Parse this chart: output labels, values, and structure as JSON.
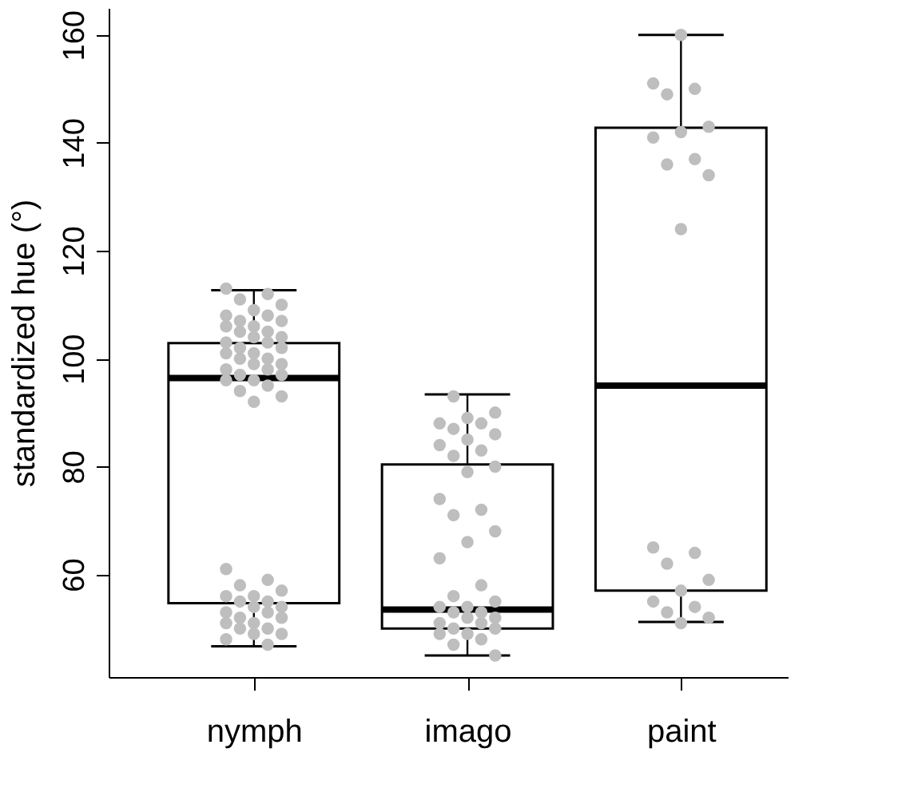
{
  "chart_data": {
    "type": "box",
    "categories": [
      "nymph",
      "imago",
      "paint"
    ],
    "boxes": [
      {
        "low": 46.7,
        "q1": 54.7,
        "median": 96.4,
        "q3": 102.9,
        "high": 112.7
      },
      {
        "low": 45,
        "q1": 50,
        "median": 53.5,
        "q3": 80.4,
        "high": 93.4
      },
      {
        "low": 51.2,
        "q1": 57,
        "median": 95,
        "q3": 142.8,
        "high": 160
      }
    ],
    "series": [
      {
        "type": "scatter",
        "color": "#bebebe",
        "x": [
          "nymph",
          "nymph",
          "nymph",
          "nymph",
          "nymph",
          "nymph",
          "nymph",
          "nymph",
          "nymph",
          "nymph",
          "nymph",
          "nymph",
          "nymph",
          "nymph",
          "nymph",
          "nymph",
          "nymph",
          "nymph",
          "nymph",
          "nymph",
          "nymph",
          "nymph",
          "nymph",
          "nymph",
          "nymph",
          "nymph",
          "nymph",
          "nymph",
          "nymph",
          "nymph",
          "nymph",
          "nymph",
          "nymph",
          "nymph",
          "nymph",
          "nymph",
          "nymph",
          "nymph",
          "nymph",
          "nymph",
          "nymph",
          "nymph",
          "nymph",
          "nymph",
          "nymph",
          "nymph",
          "nymph",
          "nymph",
          "nymph",
          "nymph",
          "nymph",
          "nymph",
          "nymph",
          "nymph",
          "nymph",
          "nymph",
          "nymph",
          "imago",
          "imago",
          "imago",
          "imago",
          "imago",
          "imago",
          "imago",
          "imago",
          "imago",
          "imago",
          "imago",
          "imago",
          "imago",
          "imago",
          "imago",
          "imago",
          "imago",
          "imago",
          "imago",
          "imago",
          "imago",
          "imago",
          "imago",
          "imago",
          "imago",
          "imago",
          "imago",
          "imago",
          "imago",
          "imago",
          "imago",
          "imago",
          "imago",
          "imago",
          "imago",
          "imago",
          "imago",
          "paint",
          "paint",
          "paint",
          "paint",
          "paint",
          "paint",
          "paint",
          "paint",
          "paint",
          "paint",
          "paint",
          "paint",
          "paint",
          "paint",
          "paint",
          "paint",
          "paint",
          "paint",
          "paint",
          "paint",
          "paint"
        ],
        "values": [
          113,
          112,
          111,
          110,
          109,
          108,
          108,
          107,
          107,
          106,
          106,
          105,
          105,
          104,
          104,
          103,
          103,
          102,
          102,
          101,
          101,
          100,
          100,
          99,
          99,
          98,
          98,
          97,
          97,
          96,
          96,
          95,
          94,
          93,
          92,
          61,
          59,
          58,
          57,
          56,
          56,
          55,
          55,
          54,
          54,
          53,
          53,
          52,
          52,
          51,
          51,
          50,
          50,
          49,
          49,
          48,
          47,
          93,
          90,
          89,
          88,
          88,
          87,
          86,
          85,
          84,
          83,
          82,
          80,
          79,
          74,
          72,
          71,
          68,
          66,
          63,
          58,
          56,
          55,
          54,
          54,
          53,
          53,
          52,
          52,
          51,
          51,
          50,
          50,
          49,
          49,
          48,
          47,
          45,
          160,
          151,
          150,
          149,
          143,
          142,
          141,
          137,
          136,
          134,
          124,
          65,
          64,
          62,
          59,
          57,
          55,
          54,
          53,
          52,
          51
        ]
      }
    ],
    "ylabel": "standardized hue (°)",
    "ylim": [
      41,
      165
    ],
    "yticks": [
      60,
      80,
      100,
      120,
      140,
      160
    ],
    "grid": false
  }
}
